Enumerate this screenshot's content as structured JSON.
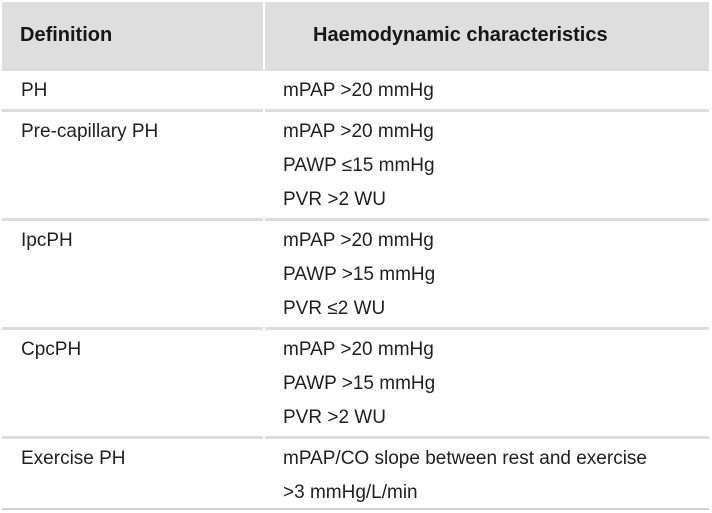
{
  "header": {
    "definition": "Definition",
    "characteristics": "Haemodynamic characteristics"
  },
  "rows": [
    {
      "definition": "PH",
      "lines": [
        "mPAP >20 mmHg"
      ]
    },
    {
      "definition": "Pre-capillary PH",
      "lines": [
        "mPAP >20 mmHg",
        "PAWP ≤15 mmHg",
        "PVR >2 WU"
      ]
    },
    {
      "definition": "IpcPH",
      "lines": [
        "mPAP >20 mmHg",
        "PAWP >15 mmHg",
        "PVR ≤2 WU"
      ]
    },
    {
      "definition": "CpcPH",
      "lines": [
        "mPAP >20 mmHg",
        "PAWP >15 mmHg",
        "PVR >2 WU"
      ]
    },
    {
      "definition": "Exercise PH",
      "lines": [
        "mPAP/CO slope between rest and exercise",
        ">3 mmHg/L/min"
      ]
    }
  ]
}
